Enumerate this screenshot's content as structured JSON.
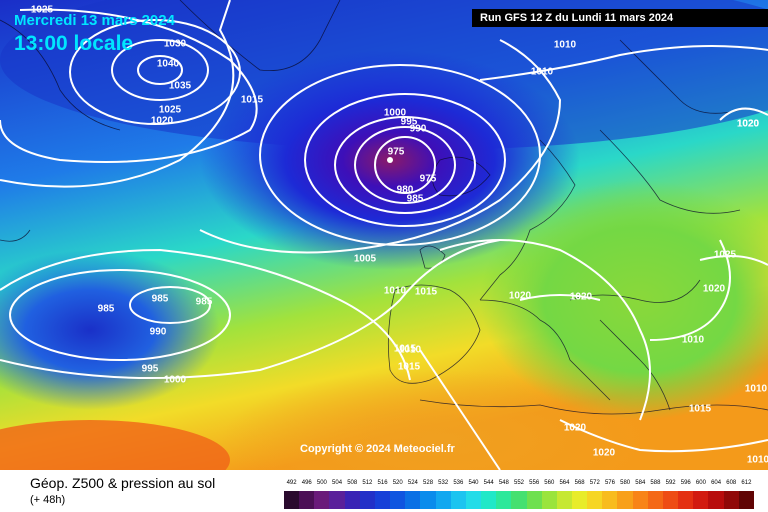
{
  "header": {
    "date": "Mercredi 13 mars 2024",
    "time": "13:00 locale",
    "run": "Run GFS 12 Z du Lundi 11 mars 2024"
  },
  "map": {
    "copyright": "Copyright © 2024 Meteociel.fr",
    "pressure_labels": [
      "1025",
      "1030",
      "1040",
      "1035",
      "1025",
      "1020",
      "1015",
      "1020",
      "1010",
      "1010",
      "1020",
      "1000",
      "995",
      "990",
      "975",
      "975",
      "980",
      "985",
      "1005",
      "985",
      "985",
      "985",
      "990",
      "995",
      "1000",
      "1010",
      "1015",
      "1020",
      "1020",
      "1010",
      "1015",
      "1015",
      "1025",
      "1020",
      "1010",
      "1015",
      "1020",
      "1020",
      "1010",
      "1010"
    ]
  },
  "footer": {
    "title": "Géop. Z500 & pression au sol",
    "subtitle": "(+ 48h)"
  },
  "legend": {
    "labels": [
      "492",
      "496",
      "500",
      "504",
      "508",
      "512",
      "516",
      "520",
      "524",
      "528",
      "532",
      "536",
      "540",
      "544",
      "548",
      "552",
      "556",
      "560",
      "564",
      "568",
      "572",
      "576",
      "580",
      "584",
      "588",
      "592",
      "596",
      "600",
      "604",
      "608",
      "612"
    ],
    "colors": [
      "#2a0a2e",
      "#4b0f55",
      "#6a1a7a",
      "#5a1f9a",
      "#3a22b5",
      "#2230c8",
      "#1740d8",
      "#0f55e0",
      "#0a70e5",
      "#0a8cec",
      "#12a8f0",
      "#1cc4f0",
      "#22dce8",
      "#20e8c8",
      "#2de89a",
      "#45e070",
      "#6ee04e",
      "#9ae43c",
      "#c6e832",
      "#e8ec2a",
      "#f6d624",
      "#f8bc1e",
      "#f8a01a",
      "#f88418",
      "#f46816",
      "#ee4c14",
      "#e43012",
      "#d21a10",
      "#b80c0c",
      "#900808",
      "#600404"
    ]
  }
}
